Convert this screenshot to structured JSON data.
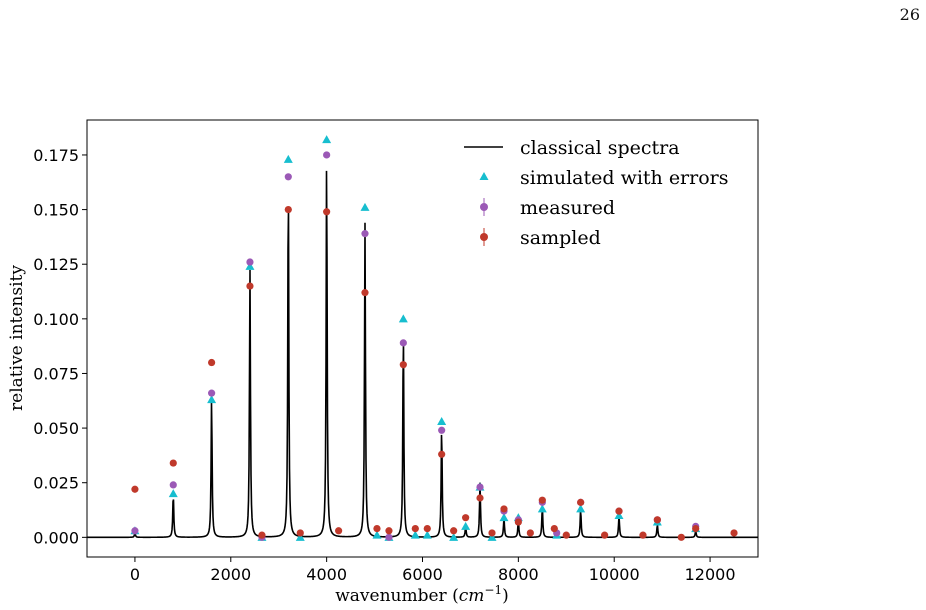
{
  "page_number": "26",
  "chart_data": {
    "type": "line",
    "xlabel": "wavenumber",
    "xlabel_unit": "cm",
    "xlabel_unit_exp": "−1",
    "ylabel": "relative intensity",
    "xlim": [
      -1000,
      13000
    ],
    "ylim": [
      -0.009,
      0.191
    ],
    "xticks": [
      0,
      2000,
      4000,
      6000,
      8000,
      10000,
      12000
    ],
    "xtick_labels": [
      "0",
      "2000",
      "4000",
      "6000",
      "8000",
      "10000",
      "12000"
    ],
    "yticks": [
      0.0,
      0.025,
      0.05,
      0.075,
      0.1,
      0.125,
      0.15,
      0.175
    ],
    "ytick_labels": [
      "0.000",
      "0.025",
      "0.050",
      "0.075",
      "0.100",
      "0.125",
      "0.150",
      "0.175"
    ],
    "grid": false,
    "legend_position": "top-right",
    "colors": {
      "classical": "#000000",
      "simulated": "#17becf",
      "measured": "#9b59b6",
      "sampled": "#c0392b"
    },
    "series": [
      {
        "name": "classical spectra",
        "style": "line",
        "lorentz_width": 12,
        "peaks": [
          [
            0,
            0.002
          ],
          [
            800,
            0.02
          ],
          [
            1600,
            0.064
          ],
          [
            2400,
            0.123
          ],
          [
            3200,
            0.168
          ],
          [
            4000,
            0.178
          ],
          [
            4800,
            0.144
          ],
          [
            5600,
            0.097
          ],
          [
            6400,
            0.051
          ],
          [
            6900,
            0.005
          ],
          [
            7200,
            0.025
          ],
          [
            7700,
            0.009
          ],
          [
            8000,
            0.008
          ],
          [
            8500,
            0.014
          ],
          [
            9300,
            0.013
          ],
          [
            10100,
            0.01
          ],
          [
            10900,
            0.006
          ],
          [
            11700,
            0.003
          ]
        ]
      },
      {
        "name": "simulated with errors",
        "style": "triangle",
        "points": [
          [
            0,
            0.003
          ],
          [
            800,
            0.02
          ],
          [
            1600,
            0.063
          ],
          [
            2400,
            0.124
          ],
          [
            2650,
            0.0
          ],
          [
            3200,
            0.173
          ],
          [
            3450,
            0.0
          ],
          [
            4000,
            0.182
          ],
          [
            4800,
            0.151
          ],
          [
            5050,
            0.001
          ],
          [
            5300,
            0.0
          ],
          [
            5600,
            0.1
          ],
          [
            5850,
            0.001
          ],
          [
            6100,
            0.001
          ],
          [
            6400,
            0.053
          ],
          [
            6650,
            0.0
          ],
          [
            6900,
            0.005
          ],
          [
            7200,
            0.023
          ],
          [
            7450,
            0.0
          ],
          [
            7700,
            0.009
          ],
          [
            8000,
            0.009
          ],
          [
            8500,
            0.013
          ],
          [
            8800,
            0.001
          ],
          [
            9300,
            0.013
          ],
          [
            10100,
            0.01
          ],
          [
            10900,
            0.007
          ],
          [
            11700,
            0.004
          ]
        ]
      },
      {
        "name": "measured",
        "style": "circle-errorbar",
        "points": [
          [
            0,
            0.003
          ],
          [
            800,
            0.024
          ],
          [
            1600,
            0.066
          ],
          [
            2400,
            0.126
          ],
          [
            2650,
            0.0
          ],
          [
            3200,
            0.165
          ],
          [
            4000,
            0.175
          ],
          [
            4800,
            0.139
          ],
          [
            5300,
            0.0
          ],
          [
            5600,
            0.089
          ],
          [
            6400,
            0.049
          ],
          [
            7200,
            0.023
          ],
          [
            7700,
            0.012
          ],
          [
            8000,
            0.008
          ],
          [
            8500,
            0.016
          ],
          [
            8800,
            0.002
          ],
          [
            9300,
            0.016
          ],
          [
            10100,
            0.012
          ],
          [
            10900,
            0.008
          ],
          [
            11700,
            0.005
          ]
        ],
        "error": [
          0.001,
          0.001,
          0.001,
          0.0015,
          0.001,
          0.0015,
          0.0015,
          0.0015,
          0.001,
          0.0015,
          0.001,
          0.001,
          0.001,
          0.001,
          0.001,
          0.001,
          0.001,
          0.001,
          0.001,
          0.001
        ]
      },
      {
        "name": "sampled",
        "style": "circle-errorbar",
        "points": [
          [
            0,
            0.022
          ],
          [
            800,
            0.034
          ],
          [
            1600,
            0.08
          ],
          [
            2400,
            0.115
          ],
          [
            2650,
            0.001
          ],
          [
            3200,
            0.15
          ],
          [
            3450,
            0.002
          ],
          [
            4000,
            0.149
          ],
          [
            4250,
            0.003
          ],
          [
            4800,
            0.112
          ],
          [
            5050,
            0.004
          ],
          [
            5300,
            0.003
          ],
          [
            5600,
            0.079
          ],
          [
            5850,
            0.004
          ],
          [
            6100,
            0.004
          ],
          [
            6400,
            0.038
          ],
          [
            6650,
            0.003
          ],
          [
            6900,
            0.009
          ],
          [
            7200,
            0.018
          ],
          [
            7450,
            0.002
          ],
          [
            7700,
            0.013
          ],
          [
            8000,
            0.007
          ],
          [
            8250,
            0.002
          ],
          [
            8500,
            0.017
          ],
          [
            8750,
            0.004
          ],
          [
            9000,
            0.001
          ],
          [
            9300,
            0.016
          ],
          [
            9800,
            0.001
          ],
          [
            10100,
            0.012
          ],
          [
            10600,
            0.001
          ],
          [
            10900,
            0.008
          ],
          [
            11400,
            0.0
          ],
          [
            11700,
            0.004
          ],
          [
            12500,
            0.002
          ]
        ],
        "error": []
      }
    ]
  }
}
